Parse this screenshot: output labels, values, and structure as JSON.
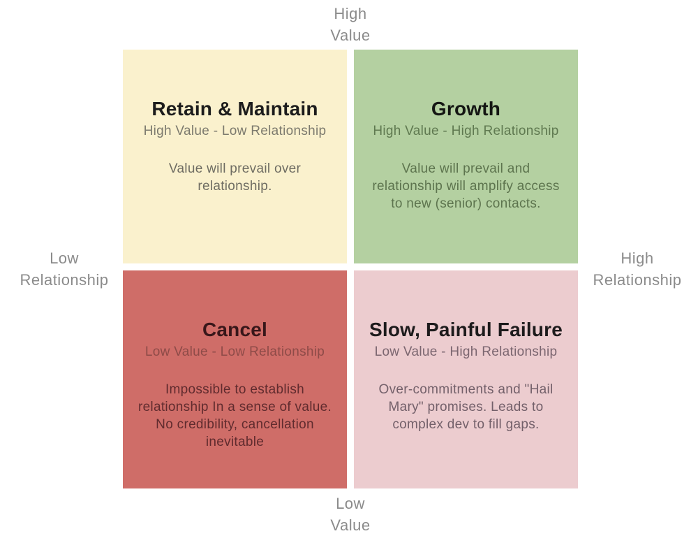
{
  "page": {
    "background": "#ffffff"
  },
  "axes": {
    "color": "#8b8b8b",
    "top": {
      "lines": [
        "High",
        "Value"
      ]
    },
    "bottom": {
      "lines": [
        "Low",
        "Value"
      ]
    },
    "left": {
      "lines": [
        "Low",
        "Relationship"
      ]
    },
    "right": {
      "lines": [
        "High",
        "Relationship"
      ]
    }
  },
  "quadrants": [
    {
      "id": "retain-maintain",
      "position": "top-left",
      "title": "Retain & Maintain",
      "subtitle": "High Value - Low Relationship",
      "description_lines": [
        "Value will prevail over",
        "relationship."
      ],
      "bg_color": "#faf1cd",
      "title_color": "#1c1c1c",
      "subtitle_color": "#7c7a6e",
      "body_color": "#6e6c62"
    },
    {
      "id": "growth",
      "position": "top-right",
      "title": "Growth",
      "subtitle": "High Value - High Relationship",
      "description_lines": [
        "Value will prevail and",
        "relationship will amplify access",
        "to new (senior) contacts."
      ],
      "bg_color": "#b4d0a1",
      "title_color": "#141613",
      "subtitle_color": "#5f7950",
      "body_color": "#5d744e"
    },
    {
      "id": "cancel",
      "position": "bottom-left",
      "title": "Cancel",
      "subtitle": "Low Value - Low Relationship",
      "description_lines": [
        "Impossible to establish",
        "relationship In a sense of value.",
        "No credibility, cancellation",
        "inevitable"
      ],
      "bg_color": "#cf6d68",
      "title_color": "#38171a",
      "subtitle_color": "#8e4b48",
      "body_color": "#602b2e"
    },
    {
      "id": "slow-painful-failure",
      "position": "bottom-right",
      "title": "Slow, Painful Failure",
      "subtitle": "Low Value - High Relationship",
      "description_lines": [
        "Over-commitments and \"Hail",
        "Mary\" promises. Leads to",
        "complex dev to fill gaps."
      ],
      "bg_color": "#eccccf",
      "title_color": "#1d1b1c",
      "subtitle_color": "#7b6670",
      "body_color": "#73606a"
    }
  ]
}
